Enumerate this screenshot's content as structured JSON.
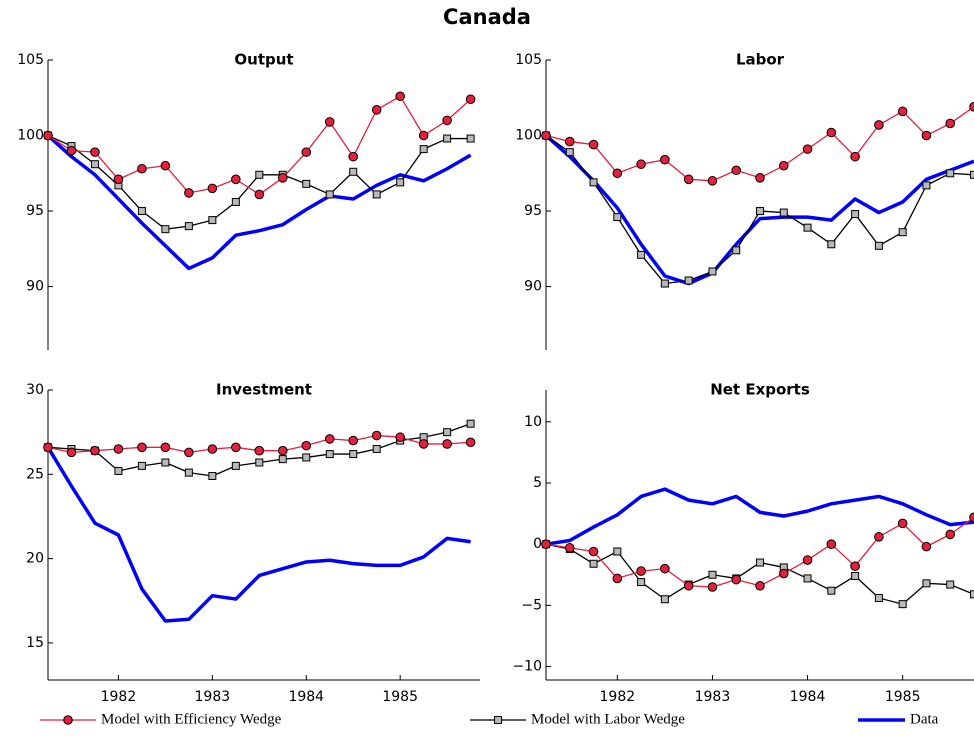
{
  "title": "Canada",
  "chart_data": [
    {
      "type": "line",
      "title": "Output",
      "x": [
        1981.25,
        1981.5,
        1981.75,
        1982,
        1982.25,
        1982.5,
        1982.75,
        1983,
        1983.25,
        1983.5,
        1983.75,
        1984,
        1984.25,
        1984.5,
        1984.75,
        1985,
        1985.25,
        1985.5,
        1985.75
      ],
      "xlim": [
        1981.25,
        1985.85
      ],
      "ylim": [
        85.8,
        105
      ],
      "yticks": [
        90,
        95,
        100,
        105
      ],
      "series": [
        {
          "name": "Model with Efficiency Wedge",
          "color": "#e3213b",
          "marker": "circle",
          "values": [
            100,
            99,
            98.9,
            97.1,
            97.8,
            98,
            96.2,
            96.5,
            97.1,
            96.1,
            97.2,
            98.9,
            100.9,
            98.6,
            101.7,
            102.6,
            100,
            101,
            102.4
          ]
        },
        {
          "name": "Model with Labor Wedge",
          "color": "#000000",
          "marker": "square",
          "values": [
            100,
            99.3,
            98.1,
            96.7,
            95,
            93.8,
            94,
            94.4,
            95.6,
            97.4,
            97.4,
            96.8,
            96.1,
            97.6,
            96.1,
            96.9,
            99.1,
            99.8,
            99.8
          ]
        },
        {
          "name": "Data",
          "color": "#0000ff",
          "marker": "none",
          "values": [
            100,
            98.6,
            97.4,
            95.8,
            94.2,
            92.7,
            91.2,
            91.9,
            93.4,
            93.7,
            94.1,
            95.1,
            96,
            95.8,
            96.7,
            97.4,
            97,
            97.8,
            98.7
          ]
        }
      ]
    },
    {
      "type": "line",
      "title": "Labor",
      "x": [
        1981.25,
        1981.5,
        1981.75,
        1982,
        1982.25,
        1982.5,
        1982.75,
        1983,
        1983.25,
        1983.5,
        1983.75,
        1984,
        1984.25,
        1984.5,
        1984.75,
        1985,
        1985.25,
        1985.5,
        1985.75
      ],
      "xlim": [
        1981.25,
        1985.75
      ],
      "ylim": [
        85.8,
        105
      ],
      "yticks": [
        90,
        95,
        100,
        105
      ],
      "series": [
        {
          "name": "Model with Efficiency Wedge",
          "color": "#e3213b",
          "marker": "circle",
          "values": [
            100,
            99.6,
            99.4,
            97.5,
            98.1,
            98.4,
            97.1,
            97,
            97.7,
            97.2,
            98,
            99.1,
            100.2,
            98.6,
            100.7,
            101.6,
            100,
            100.8,
            101.9
          ]
        },
        {
          "name": "Model with Labor Wedge",
          "color": "#000000",
          "marker": "square",
          "values": [
            100,
            98.9,
            96.9,
            94.6,
            92.1,
            90.2,
            90.4,
            91,
            92.4,
            95,
            94.9,
            93.9,
            92.8,
            94.8,
            92.7,
            93.6,
            96.7,
            97.5,
            97.4
          ]
        },
        {
          "name": "Data",
          "color": "#0000ff",
          "marker": "none",
          "values": [
            100,
            98.6,
            97,
            95.2,
            92.8,
            90.7,
            90.2,
            90.9,
            92.8,
            94.5,
            94.6,
            94.6,
            94.4,
            95.8,
            94.9,
            95.6,
            97.1,
            97.7,
            98.3
          ]
        }
      ]
    },
    {
      "type": "line",
      "title": "Investment",
      "x": [
        1981.25,
        1981.5,
        1981.75,
        1982,
        1982.25,
        1982.5,
        1982.75,
        1983,
        1983.25,
        1983.5,
        1983.75,
        1984,
        1984.25,
        1984.5,
        1984.75,
        1985,
        1985.25,
        1985.5,
        1985.75
      ],
      "xlim": [
        1981.25,
        1985.85
      ],
      "ylim": [
        12.8,
        30
      ],
      "yticks": [
        15,
        20,
        25,
        30
      ],
      "xticks": [
        1982,
        1983,
        1984,
        1985
      ],
      "series": [
        {
          "name": "Model with Efficiency Wedge",
          "color": "#e3213b",
          "marker": "circle",
          "values": [
            26.6,
            26.3,
            26.4,
            26.5,
            26.6,
            26.6,
            26.3,
            26.5,
            26.6,
            26.4,
            26.4,
            26.7,
            27.1,
            27,
            27.3,
            27.2,
            26.8,
            26.8,
            26.9
          ]
        },
        {
          "name": "Model with Labor Wedge",
          "color": "#000000",
          "marker": "square",
          "values": [
            26.6,
            26.5,
            26.4,
            25.2,
            25.5,
            25.7,
            25.1,
            24.9,
            25.5,
            25.7,
            25.9,
            26,
            26.2,
            26.2,
            26.5,
            27,
            27.2,
            27.5,
            28
          ]
        },
        {
          "name": "Data",
          "color": "#0000ff",
          "marker": "none",
          "values": [
            26.6,
            24.3,
            22.1,
            21.4,
            18.2,
            16.3,
            16.4,
            17.8,
            17.6,
            19,
            19.4,
            19.8,
            19.9,
            19.7,
            19.6,
            19.6,
            20.1,
            21.2,
            21
          ]
        }
      ]
    },
    {
      "type": "line",
      "title": "Net Exports",
      "x": [
        1981.25,
        1981.5,
        1981.75,
        1982,
        1982.25,
        1982.5,
        1982.75,
        1983,
        1983.25,
        1983.5,
        1983.75,
        1984,
        1984.25,
        1984.5,
        1984.75,
        1985,
        1985.25,
        1985.5,
        1985.75
      ],
      "xlim": [
        1981.25,
        1985.75
      ],
      "ylim": [
        -11.1,
        12.6
      ],
      "yticks": [
        {
          "value": -10,
          "label": "−10"
        },
        {
          "value": -5,
          "label": "−5"
        },
        0,
        5,
        10
      ],
      "xticks": [
        1982,
        1983,
        1984,
        1985
      ],
      "series": [
        {
          "name": "Model with Efficiency Wedge",
          "color": "#e3213b",
          "marker": "circle",
          "values": [
            0,
            -0.3,
            -0.6,
            -2.8,
            -2.2,
            -2,
            -3.4,
            -3.5,
            -2.9,
            -3.4,
            -2.4,
            -1.3,
            0,
            -1.8,
            0.6,
            1.7,
            -0.2,
            0.8,
            2.2
          ]
        },
        {
          "name": "Model with Labor Wedge",
          "color": "#000000",
          "marker": "square",
          "values": [
            0,
            -0.4,
            -1.6,
            -0.6,
            -3.1,
            -4.5,
            -3.3,
            -2.5,
            -2.8,
            -1.5,
            -1.9,
            -2.8,
            -3.8,
            -2.6,
            -4.4,
            -4.9,
            -3.2,
            -3.3,
            -4.1
          ]
        },
        {
          "name": "Data",
          "color": "#0000ff",
          "marker": "none",
          "values": [
            0,
            0.3,
            1.4,
            2.4,
            3.9,
            4.5,
            3.6,
            3.3,
            3.9,
            2.6,
            2.3,
            2.7,
            3.3,
            3.6,
            3.9,
            3.3,
            2.4,
            1.6,
            1.8
          ]
        }
      ]
    }
  ]
}
